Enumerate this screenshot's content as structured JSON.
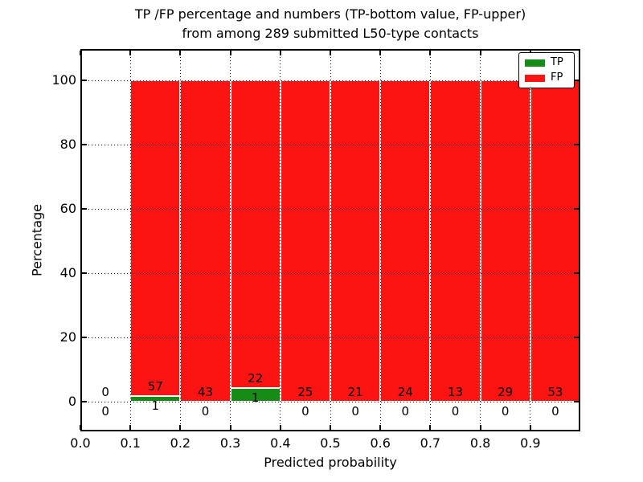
{
  "chart_data": {
    "type": "bar",
    "stacked": true,
    "title_line1": "TP /FP percentage and numbers (TP-bottom value, FP-upper)",
    "title_line2": "from among 289 submitted L50-type contacts",
    "xlabel": "Predicted probability",
    "ylabel": "Percentage",
    "total_submitted": 289,
    "bin_edges": [
      0.0,
      0.1,
      0.2,
      0.3,
      0.4,
      0.5,
      0.6,
      0.7,
      0.8,
      0.9,
      1.0
    ],
    "series": [
      {
        "name": "TP",
        "color": "#168c16",
        "counts": [
          0,
          1,
          0,
          1,
          0,
          0,
          0,
          0,
          0,
          0
        ],
        "pct": [
          0,
          1.7241,
          0,
          4.3478,
          0,
          0,
          0,
          0,
          0,
          0
        ]
      },
      {
        "name": "FP",
        "color": "#fb1412",
        "counts": [
          0,
          57,
          43,
          22,
          25,
          21,
          24,
          13,
          29,
          53
        ],
        "pct": [
          0,
          98.2759,
          100,
          95.6522,
          100,
          100,
          100,
          100,
          100,
          100
        ]
      }
    ],
    "xtick_labels": [
      "0.0",
      "0.1",
      "0.2",
      "0.3",
      "0.4",
      "0.5",
      "0.6",
      "0.7",
      "0.8",
      "0.9"
    ],
    "ytick_values": [
      0,
      20,
      40,
      60,
      80,
      100
    ],
    "ytick_labels": [
      "0",
      "20",
      "40",
      "60",
      "80",
      "100"
    ],
    "xlim": [
      0.0,
      1.0
    ],
    "ylim": [
      -9.25,
      109.75
    ],
    "grid": "dotted",
    "grid_color": "#000000",
    "bar_edge_color": "#ffffff",
    "label_color": "#000000",
    "legend_position": "upper right"
  }
}
